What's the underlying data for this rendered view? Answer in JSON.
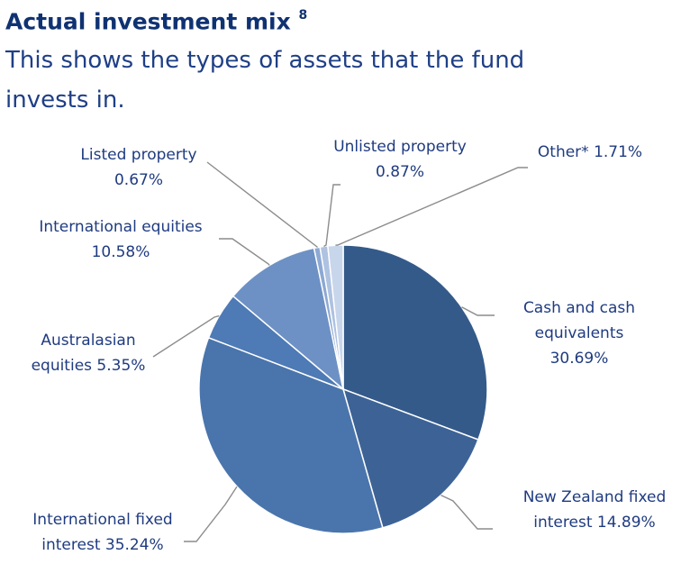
{
  "title": "Actual investment mix",
  "title_superscript": "8",
  "subtitle": "This shows the types of assets that the fund invests in.",
  "chart_data": {
    "type": "pie",
    "title": "Actual investment mix",
    "slices": [
      {
        "name": "Cash and cash equivalents",
        "label_lines": [
          "Cash and cash",
          "equivalents",
          "30.69%"
        ],
        "value": 30.69,
        "color": "#345a8a"
      },
      {
        "name": "New Zealand fixed interest",
        "label_lines": [
          "New Zealand fixed",
          "interest 14.89%"
        ],
        "value": 14.89,
        "color": "#3d6396"
      },
      {
        "name": "International fixed interest",
        "label_lines": [
          "International fixed",
          "interest 35.24%"
        ],
        "value": 35.24,
        "color": "#4a75ac"
      },
      {
        "name": "Australasian equities",
        "label_lines": [
          "Australasian",
          "equities 5.35%"
        ],
        "value": 5.35,
        "color": "#4e7ab5"
      },
      {
        "name": "International equities",
        "label_lines": [
          "International equities",
          "10.58%"
        ],
        "value": 10.58,
        "color": "#6d91c4"
      },
      {
        "name": "Listed property",
        "label_lines": [
          "Listed property",
          "0.67%"
        ],
        "value": 0.67,
        "color": "#8da9d3"
      },
      {
        "name": "Unlisted property",
        "label_lines": [
          "Unlisted property",
          "0.87%"
        ],
        "value": 0.87,
        "color": "#aec2e1"
      },
      {
        "name": "Other*",
        "label_lines": [
          "Other* 1.71%"
        ],
        "value": 1.71,
        "color": "#c8d6ec"
      }
    ],
    "legend": "none"
  }
}
